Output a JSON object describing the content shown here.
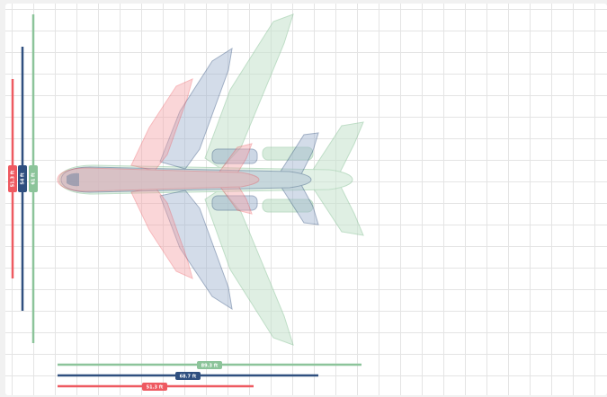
{
  "colors": {
    "red": "#ee5a61",
    "navy": "#2f4f7f",
    "green": "#8cc49a",
    "grid": "#e4e4e4",
    "background": "#ffffff"
  },
  "aircraft": [
    {
      "key": "red",
      "color": "#ee5a61",
      "length": "51.3 ft",
      "wingspan": "51.3 ft"
    },
    {
      "key": "navy",
      "color": "#2f4f7f",
      "length": "68.7 ft",
      "wingspan": "54 ft"
    },
    {
      "key": "green",
      "color": "#8cc49a",
      "length": "89.3 ft",
      "wingspan": "61 ft"
    }
  ]
}
